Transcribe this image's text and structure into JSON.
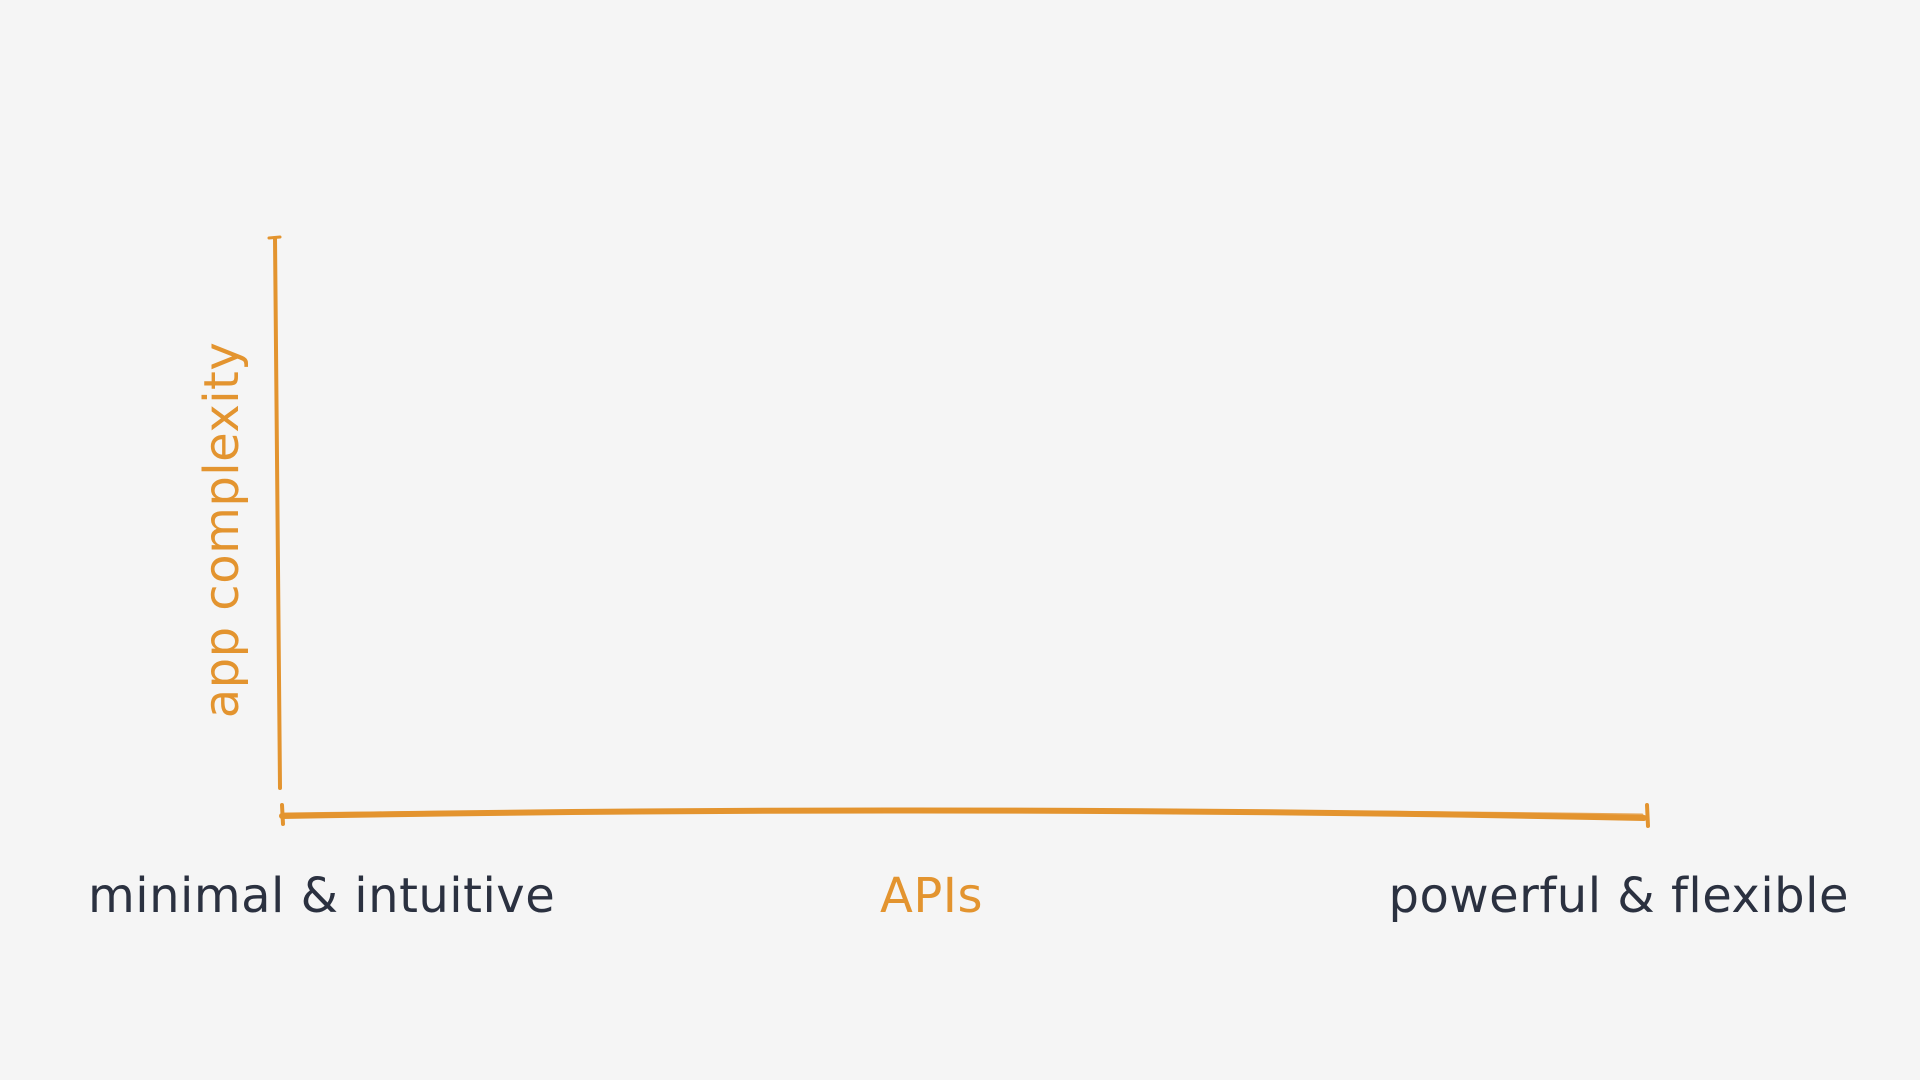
{
  "colors": {
    "background": "#f5f5f5",
    "accent": "#e3942f",
    "text_dark": "#2b3140"
  },
  "axes": {
    "y_label": "app complexity",
    "x_label": "APIs",
    "x_left_label": "minimal & intuitive",
    "x_right_label": "powerful & flexible"
  }
}
